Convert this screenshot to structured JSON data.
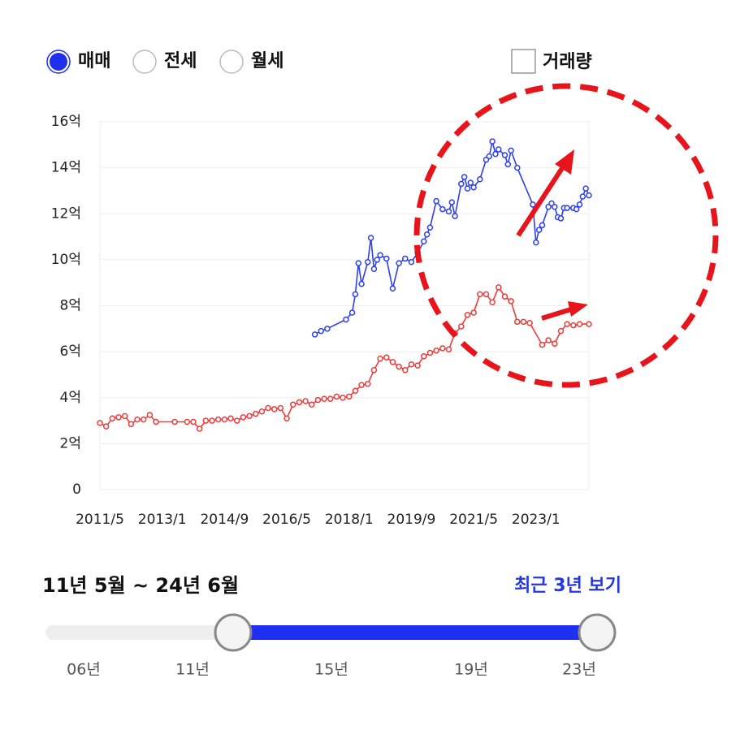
{
  "ui": {
    "radio_options": [
      {
        "label": "매매",
        "selected": true
      },
      {
        "label": "전세",
        "selected": false
      },
      {
        "label": "월세",
        "selected": false
      }
    ],
    "checkbox": {
      "label": "거래량",
      "checked": false
    },
    "period": {
      "range_text": "11년 5월 ~ 24년 6월",
      "recent_link": "최근 3년 보기",
      "slider_labels": [
        "06년",
        "11년",
        "15년",
        "19년",
        "23년"
      ]
    }
  },
  "chart_data": {
    "type": "line",
    "xlim": [
      "2011/5",
      "2024/6"
    ],
    "xticks": [
      "2011/5",
      "2013/1",
      "2014/9",
      "2016/5",
      "2018/1",
      "2019/9",
      "2021/5",
      "2023/1"
    ],
    "ylim": [
      0,
      16
    ],
    "yticks": [
      0,
      {
        "value": 2,
        "label": "2억"
      },
      {
        "value": 4,
        "label": "4억"
      },
      {
        "value": 6,
        "label": "6억"
      },
      {
        "value": 8,
        "label": "8억"
      },
      {
        "value": 10,
        "label": "10억"
      },
      {
        "value": 12,
        "label": "12억"
      },
      {
        "value": 14,
        "label": "14억"
      },
      {
        "value": 16,
        "label": "16억"
      }
    ],
    "grid": true,
    "series": [
      {
        "color": "#2d3ff2",
        "x": [
          "2017/2",
          "2017/4",
          "2017/6",
          "2017/12",
          "2018/2",
          "2018/3",
          "2018/4",
          "2018/5",
          "2018/7",
          "2018/8",
          "2018/9",
          "2018/10",
          "2018/11",
          "2019/1",
          "2019/3",
          "2019/5",
          "2019/7",
          "2019/9",
          "2019/11",
          "2020/1",
          "2020/2",
          "2020/3",
          "2020/5",
          "2020/7",
          "2020/9",
          "2020/10",
          "2020/11",
          "2021/1",
          "2021/2",
          "2021/3",
          "2021/4",
          "2021/5",
          "2021/7",
          "2021/9",
          "2021/10",
          "2021/11",
          "2021/12",
          "2022/1",
          "2022/3",
          "2022/4",
          "2022/5",
          "2022/7",
          "2022/12",
          "2023/1",
          "2023/2",
          "2023/3",
          "2023/5",
          "2023/6",
          "2023/7",
          "2023/8",
          "2023/9",
          "2023/10",
          "2023/11",
          "2024/1",
          "2024/2",
          "2024/3",
          "2024/4",
          "2024/5",
          "2024/6"
        ],
        "values": [
          6.75,
          6.9,
          7.0,
          7.4,
          7.7,
          8.5,
          9.85,
          8.95,
          9.9,
          10.95,
          9.6,
          10.0,
          10.2,
          10.05,
          8.75,
          9.85,
          10.05,
          9.9,
          10.3,
          10.8,
          11.1,
          11.4,
          12.55,
          12.2,
          12.1,
          12.5,
          11.9,
          13.3,
          13.6,
          13.1,
          13.35,
          13.15,
          13.5,
          14.35,
          14.5,
          15.15,
          14.6,
          14.8,
          14.55,
          14.15,
          14.75,
          14.0,
          12.4,
          10.75,
          11.3,
          11.5,
          12.3,
          12.45,
          12.3,
          11.85,
          11.8,
          12.25,
          12.25,
          12.25,
          12.2,
          12.4,
          12.75,
          13.1,
          12.8
        ]
      },
      {
        "color": "#f03a3a",
        "x": [
          "2011/5",
          "2011/7",
          "2011/9",
          "2011/11",
          "2012/1",
          "2012/3",
          "2012/5",
          "2012/7",
          "2012/9",
          "2012/11",
          "2013/5",
          "2013/9",
          "2013/11",
          "2014/1",
          "2014/3",
          "2014/5",
          "2014/7",
          "2014/9",
          "2014/11",
          "2015/1",
          "2015/3",
          "2015/5",
          "2015/7",
          "2015/9",
          "2015/11",
          "2016/1",
          "2016/3",
          "2016/5",
          "2016/7",
          "2016/9",
          "2016/11",
          "2017/1",
          "2017/3",
          "2017/5",
          "2017/7",
          "2017/9",
          "2017/11",
          "2018/1",
          "2018/3",
          "2018/5",
          "2018/7",
          "2018/9",
          "2018/11",
          "2019/1",
          "2019/3",
          "2019/5",
          "2019/7",
          "2019/9",
          "2019/11",
          "2020/1",
          "2020/3",
          "2020/5",
          "2020/7",
          "2020/9",
          "2020/11",
          "2021/1",
          "2021/3",
          "2021/5",
          "2021/7",
          "2021/9",
          "2021/11",
          "2022/1",
          "2022/3",
          "2022/5",
          "2022/7",
          "2022/9",
          "2022/11",
          "2023/3",
          "2023/5",
          "2023/7",
          "2023/9",
          "2023/11",
          "2024/1",
          "2024/3",
          "2024/6"
        ],
        "values": [
          2.9,
          2.75,
          3.1,
          3.15,
          3.2,
          2.85,
          3.05,
          3.05,
          3.25,
          2.95,
          2.95,
          2.95,
          2.95,
          2.65,
          3.0,
          3.0,
          3.05,
          3.05,
          3.1,
          3.0,
          3.15,
          3.2,
          3.3,
          3.4,
          3.55,
          3.5,
          3.55,
          3.1,
          3.7,
          3.8,
          3.85,
          3.7,
          3.9,
          3.95,
          3.95,
          4.05,
          4.0,
          4.05,
          4.3,
          4.55,
          4.6,
          5.2,
          5.7,
          5.75,
          5.55,
          5.35,
          5.2,
          5.45,
          5.4,
          5.8,
          5.95,
          6.05,
          6.15,
          6.1,
          6.8,
          7.1,
          7.6,
          7.7,
          8.5,
          8.5,
          8.15,
          8.8,
          8.4,
          8.2,
          7.3,
          7.3,
          7.25,
          6.3,
          6.5,
          6.35,
          6.9,
          7.2,
          7.15,
          7.2,
          7.2
        ]
      }
    ]
  }
}
